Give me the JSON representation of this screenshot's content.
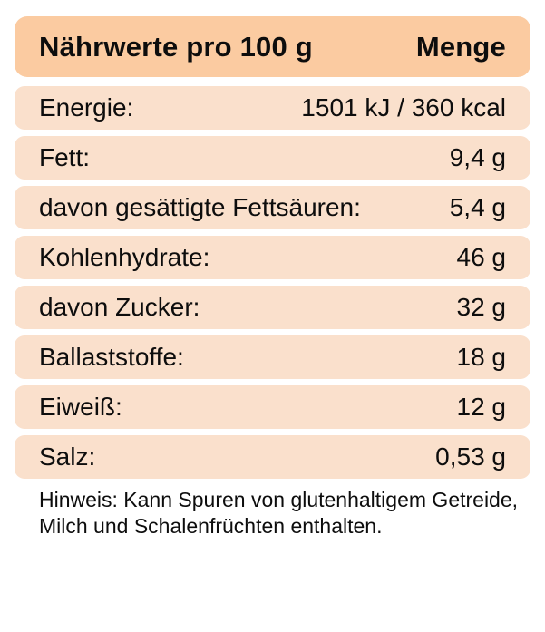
{
  "table": {
    "header": {
      "title": "Nährwerte pro 100 g",
      "amount_label": "Menge"
    },
    "rows": [
      {
        "label": "Energie:",
        "value": "1501 kJ / 360 kcal"
      },
      {
        "label": "Fett:",
        "value": "9,4 g"
      },
      {
        "label": "davon gesättigte Fettsäuren:",
        "value": "5,4 g"
      },
      {
        "label": "Kohlenhydrate:",
        "value": "46 g"
      },
      {
        "label": "davon Zucker:",
        "value": "32 g"
      },
      {
        "label": "Ballaststoffe:",
        "value": "18 g"
      },
      {
        "label": "Eiweiß:",
        "value": "12 g"
      },
      {
        "label": "Salz:",
        "value": "0,53 g"
      }
    ],
    "note": {
      "line1": "Hinweis: Kann Spuren von glutenhaltigem Getreide,",
      "line2": "Milch und Schalenfrüchten enthalten."
    }
  },
  "colors": {
    "header_bg": "#fbcba1",
    "row_bg": "#fae0cc",
    "text": "#0d0d0d",
    "page_bg": "#ffffff"
  }
}
